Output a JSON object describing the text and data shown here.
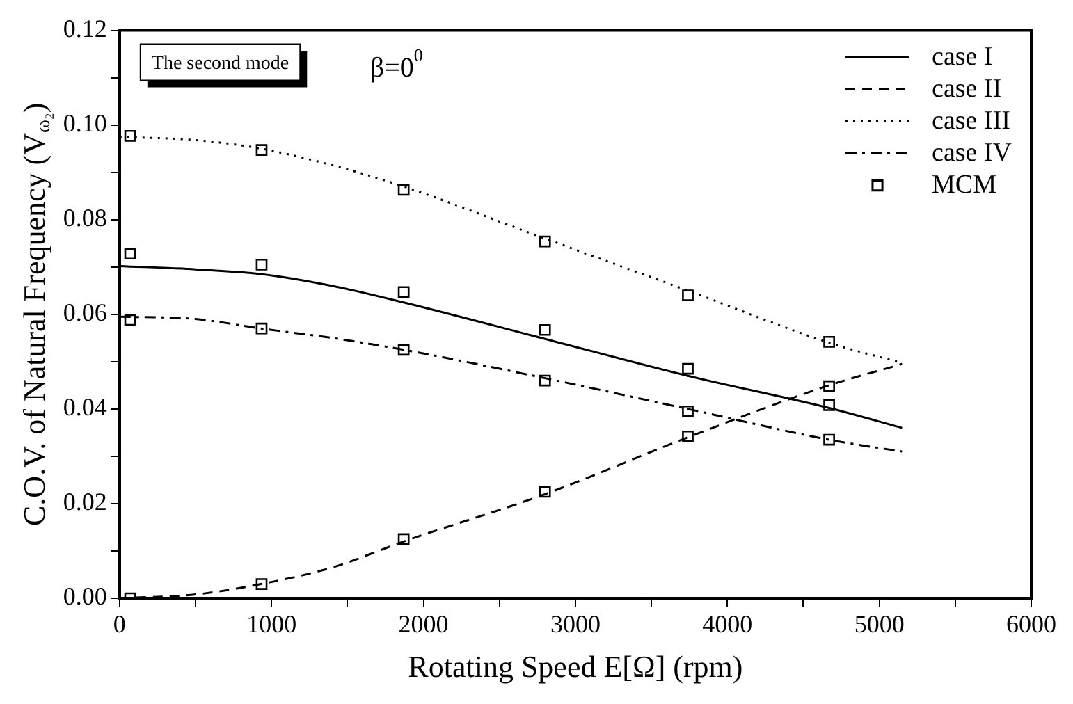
{
  "chart_data": {
    "type": "line",
    "xlabel": "Rotating Speed E[Ω] (rpm)",
    "ylabel": "C.O.V. of Natural Frequency (V$_{ω₂}$)",
    "annotations": [
      "The second mode",
      "β=0$^{0}$"
    ],
    "xlim": [
      0,
      6000
    ],
    "ylim": [
      0,
      0.12
    ],
    "xticks": [
      0,
      {
        "value": 500,
        "label": null
      },
      1000,
      {
        "value": 1500,
        "label": null
      },
      2000,
      {
        "value": 2500,
        "label": null
      },
      3000,
      {
        "value": 3500,
        "label": null
      },
      4000,
      {
        "value": 4500,
        "label": null
      },
      5000,
      {
        "value": 5500,
        "label": null
      },
      6000
    ],
    "yticks": [
      {
        "value": 0,
        "label": "0.00"
      },
      {
        "value": 0.01,
        "label": null
      },
      {
        "value": 0.02,
        "label": "0.02"
      },
      {
        "value": 0.03,
        "label": null
      },
      {
        "value": 0.04,
        "label": "0.04"
      },
      {
        "value": 0.05,
        "label": null
      },
      {
        "value": 0.06,
        "label": "0.06"
      },
      {
        "value": 0.07,
        "label": null
      },
      {
        "value": 0.08,
        "label": "0.08"
      },
      {
        "value": 0.09,
        "label": null
      },
      {
        "value": 0.1,
        "label": "0.10"
      },
      {
        "value": 0.11,
        "label": null
      },
      {
        "value": 0.12,
        "label": "0.12"
      }
    ],
    "grid": false,
    "legend": "top right",
    "series": [
      {
        "name": "case I",
        "color": "#000000",
        "line_style": "solid",
        "marker": "none",
        "x": [
          0,
          500,
          930,
          1400,
          1870,
          2800,
          3740,
          4670,
          5150
        ],
        "values": [
          0.0702,
          0.0695,
          0.0685,
          0.066,
          0.0625,
          0.0548,
          0.047,
          0.0402,
          0.036
        ]
      },
      {
        "name": "case II",
        "color": "#000000",
        "line_style": "dashed",
        "marker": "none",
        "x": [
          0,
          500,
          930,
          1400,
          1870,
          2800,
          3740,
          4670,
          5150
        ],
        "values": [
          0,
          0.0008,
          0.003,
          0.0065,
          0.012,
          0.022,
          0.034,
          0.045,
          0.0495
        ]
      },
      {
        "name": "case III",
        "color": "#000000",
        "line_style": "dotted",
        "marker": "none",
        "x": [
          0,
          500,
          930,
          1400,
          1870,
          2800,
          3740,
          4670,
          5150
        ],
        "values": [
          0.0975,
          0.0968,
          0.095,
          0.0915,
          0.087,
          0.076,
          0.065,
          0.054,
          0.0497
        ]
      },
      {
        "name": "case IV",
        "color": "#000000",
        "line_style": "dashdot",
        "marker": "none",
        "x": [
          0,
          500,
          930,
          1400,
          1870,
          2800,
          3740,
          4670,
          5150
        ],
        "values": [
          0.0595,
          0.059,
          0.057,
          0.055,
          0.0525,
          0.0465,
          0.04,
          0.0335,
          0.031
        ]
      },
      {
        "name": "MCM",
        "type": "scatter",
        "color": "#000000",
        "marker": "square",
        "x": [
          70,
          935,
          1870,
          2800,
          3740,
          4670,
          70,
          935,
          1870,
          2800,
          3740,
          4670,
          70,
          935,
          1870,
          2800,
          3740,
          4670,
          70,
          935,
          1870,
          2800,
          3740,
          4670
        ],
        "values": [
          0.0728,
          0.0705,
          0.0647,
          0.0567,
          0.0485,
          0.0408,
          0,
          0.003,
          0.0125,
          0.0225,
          0.0342,
          0.0448,
          0.0977,
          0.0947,
          0.0863,
          0.0754,
          0.064,
          0.0542,
          0.0588,
          0.057,
          0.0525,
          0.046,
          0.0395,
          0.0335
        ]
      }
    ]
  }
}
